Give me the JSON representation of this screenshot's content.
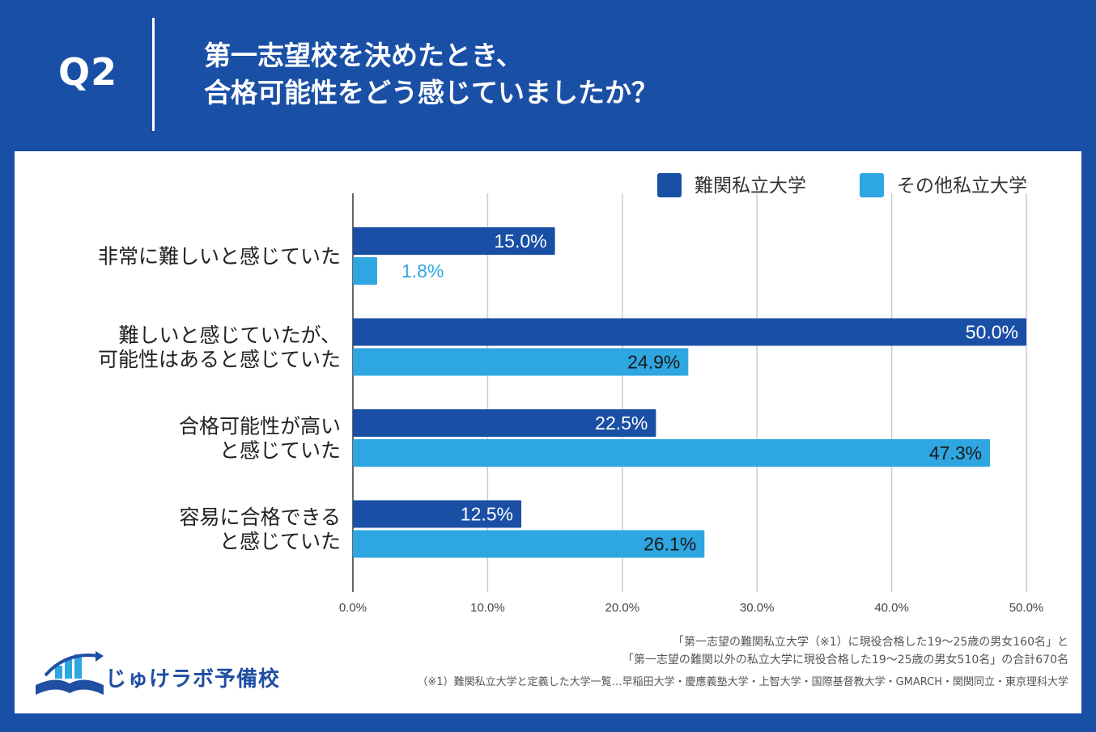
{
  "header": {
    "q_label": "Q2",
    "title_line1": "第一志望校を決めたとき、",
    "title_line2": "合格可能性をどう感じていましたか？"
  },
  "colors": {
    "background": "#1a4fa6",
    "series1": "#1a4fa6",
    "series2": "#2ea6e1",
    "grid": "#cccccc",
    "axis": "#333333"
  },
  "chart_data": {
    "type": "bar",
    "orientation": "horizontal",
    "categories": [
      [
        "非常に難しいと感じていた"
      ],
      [
        "難しいと感じていたが、",
        "可能性はあると感じていた"
      ],
      [
        "合格可能性が高い",
        "と感じていた"
      ],
      [
        "容易に合格できる",
        "と感じていた"
      ]
    ],
    "series": [
      {
        "name": "難関私立大学",
        "values": [
          15.0,
          50.0,
          22.5,
          12.5
        ],
        "labels": [
          "15.0%",
          "50.0%",
          "22.5%",
          "12.5%"
        ]
      },
      {
        "name": "その他私立大学",
        "values": [
          1.8,
          24.9,
          47.3,
          26.1
        ],
        "labels": [
          "1.8%",
          "24.9%",
          "47.3%",
          "26.1%"
        ]
      }
    ],
    "xlim": [
      0,
      50
    ],
    "xticks": [
      "0.0%",
      "10.0%",
      "20.0%",
      "30.0%",
      "40.0%",
      "50.0%"
    ],
    "grid": true,
    "legend": "top-right"
  },
  "footer": {
    "note_line1": "「第一志望の難関私立大学（※1）に現役合格した19〜25歳の男女160名」と",
    "note_line2": "「第一志望の難関以外の私立大学に現役合格した19〜25歳の男女510名」の合計670名",
    "note_line3": "（※1）難関私立大学と定義した大学一覧…早稲田大学・慶應義塾大学・上智大学・国際基督教大学・GMARCH・関関同立・東京理科大学",
    "logo_text": "じゅけラボ予備校",
    "logo_icon": "open-book-icon"
  }
}
